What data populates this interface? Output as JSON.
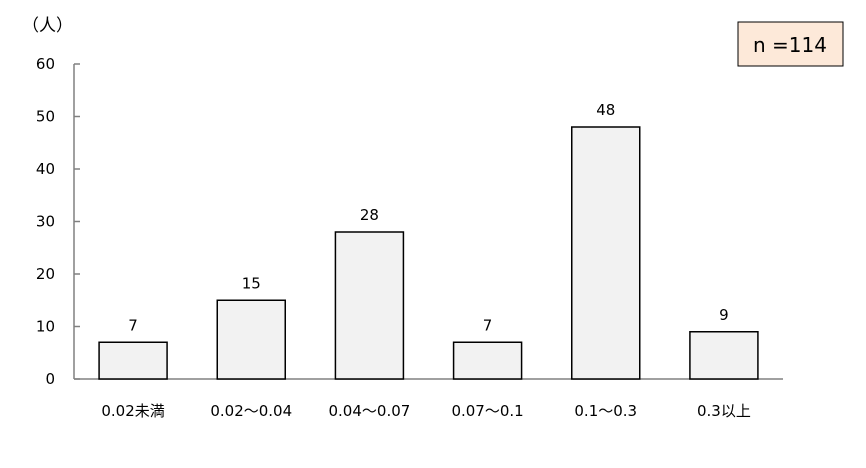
{
  "chart_data": {
    "type": "bar",
    "ylabel": "（人）",
    "categories": [
      "0.02未満",
      "0.02〜0.04",
      "0.04〜0.07",
      "0.07〜0.1",
      "0.1〜0.3",
      "0.3以上"
    ],
    "values": [
      7,
      15,
      28,
      7,
      48,
      9
    ],
    "ylim": [
      0,
      60
    ],
    "yticks": [
      0,
      10,
      20,
      30,
      40,
      50,
      60
    ],
    "grid": false,
    "data_labels": true,
    "annotation": "n =114",
    "colors": {
      "bar_fill": "#f2f2f2",
      "bar_stroke": "#000000",
      "axis": "#808080",
      "annotation_fill": "#fde9d9"
    }
  }
}
